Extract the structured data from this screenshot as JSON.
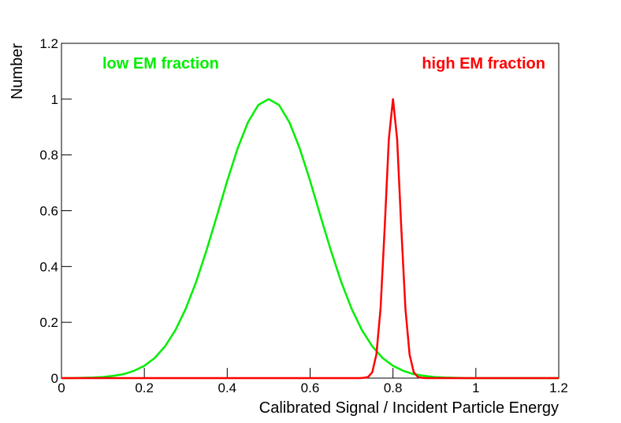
{
  "chart_data": {
    "type": "line",
    "xlabel": "Calibrated Signal / Incident Particle Energy",
    "ylabel": "Number",
    "xlim": [
      0,
      1.2
    ],
    "ylim": [
      0,
      1.2
    ],
    "xticks": [
      0,
      0.2,
      0.4,
      0.6,
      0.8,
      1,
      1.2
    ],
    "yticks": [
      0,
      0.2,
      0.4,
      0.6,
      0.8,
      1,
      1.2
    ],
    "series": [
      {
        "name": "low EM fraction",
        "color": "#00ee00",
        "x": [
          0,
          0.025,
          0.05,
          0.075,
          0.1,
          0.125,
          0.15,
          0.175,
          0.2,
          0.225,
          0.25,
          0.275,
          0.3,
          0.325,
          0.35,
          0.375,
          0.4,
          0.425,
          0.45,
          0.475,
          0.5,
          0.525,
          0.55,
          0.575,
          0.6,
          0.625,
          0.65,
          0.675,
          0.7,
          0.725,
          0.75,
          0.775,
          0.8,
          0.825,
          0.85,
          0.875,
          0.9,
          0.925,
          0.95,
          0.975,
          1,
          1.05,
          1.1,
          1.15,
          1.2
        ],
        "values": [
          0,
          0,
          0.001,
          0.002,
          0.004,
          0.008,
          0.014,
          0.026,
          0.044,
          0.072,
          0.114,
          0.172,
          0.249,
          0.345,
          0.458,
          0.581,
          0.707,
          0.823,
          0.917,
          0.979,
          1,
          0.979,
          0.917,
          0.823,
          0.707,
          0.581,
          0.458,
          0.345,
          0.249,
          0.172,
          0.114,
          0.072,
          0.044,
          0.026,
          0.014,
          0.008,
          0.004,
          0.002,
          0.001,
          0,
          0,
          0,
          0,
          0,
          0
        ]
      },
      {
        "name": "high EM fraction",
        "color": "#ff0000",
        "x": [
          0,
          0.72,
          0.73,
          0.74,
          0.75,
          0.76,
          0.77,
          0.78,
          0.79,
          0.8,
          0.81,
          0.82,
          0.83,
          0.84,
          0.85,
          0.86,
          0.87,
          0.88,
          1.2
        ],
        "values": [
          0,
          0,
          0.001,
          0.004,
          0.021,
          0.085,
          0.249,
          0.539,
          0.857,
          1,
          0.857,
          0.539,
          0.249,
          0.085,
          0.021,
          0.004,
          0.001,
          0,
          0
        ]
      }
    ]
  }
}
